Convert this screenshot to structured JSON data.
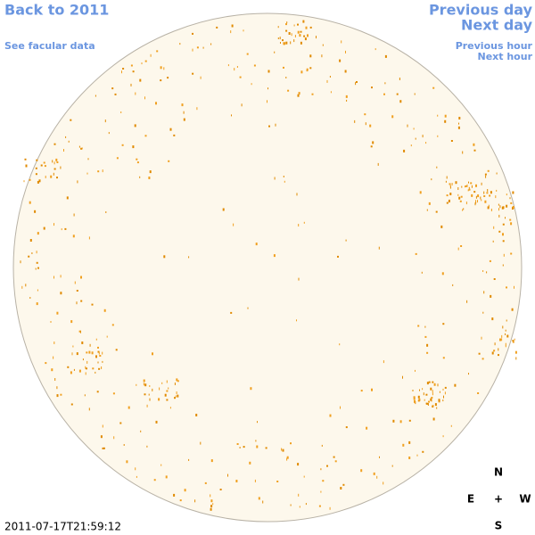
{
  "nav": {
    "back_year": "Back to 2011",
    "facular_data": "See facular data",
    "previous_day": "Previous day",
    "next_day": "Next day",
    "previous_hour": "Previous hour",
    "next_hour": "Next hour"
  },
  "timestamp": "2011-07-17T21:59:12",
  "compass": {
    "north": "N",
    "east": "E",
    "center": "+",
    "west": "W",
    "south": "S"
  }
}
